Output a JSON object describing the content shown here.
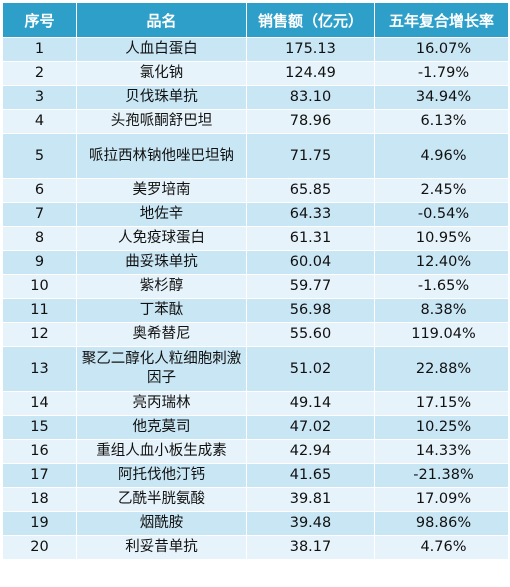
{
  "header": {
    "col_rank": "序号",
    "col_name": "品名",
    "col_sales": "销售额（亿元）",
    "col_growth": "五年复合增长率"
  },
  "rows": [
    {
      "rank": "1",
      "name": "人血白蛋白",
      "sales": "175.13",
      "growth": "16.07%"
    },
    {
      "rank": "2",
      "name": "氯化钠",
      "sales": "124.49",
      "growth": "-1.79%"
    },
    {
      "rank": "3",
      "name": "贝伐珠单抗",
      "sales": "83.10",
      "growth": "34.94%"
    },
    {
      "rank": "4",
      "name": "头孢哌酮舒巴坦",
      "sales": "78.96",
      "growth": "6.13%"
    },
    {
      "rank": "5",
      "name": "哌拉西林钠他唑巴坦钠",
      "sales": "71.75",
      "growth": "4.96%"
    },
    {
      "rank": "6",
      "name": "美罗培南",
      "sales": "65.85",
      "growth": "2.45%"
    },
    {
      "rank": "7",
      "name": "地佐辛",
      "sales": "64.33",
      "growth": "-0.54%"
    },
    {
      "rank": "8",
      "name": "人免疫球蛋白",
      "sales": "61.31",
      "growth": "10.95%"
    },
    {
      "rank": "9",
      "name": "曲妥珠单抗",
      "sales": "60.04",
      "growth": "12.40%"
    },
    {
      "rank": "10",
      "name": "紫杉醇",
      "sales": "59.77",
      "growth": "-1.65%"
    },
    {
      "rank": "11",
      "name": "丁苯酞",
      "sales": "56.98",
      "growth": "8.38%"
    },
    {
      "rank": "12",
      "name": "奥希替尼",
      "sales": "55.60",
      "growth": "119.04%"
    },
    {
      "rank": "13",
      "name": "聚乙二醇化人粒细胞刺激因子",
      "sales": "51.02",
      "growth": "22.88%"
    },
    {
      "rank": "14",
      "name": "亮丙瑞林",
      "sales": "49.14",
      "growth": "17.15%"
    },
    {
      "rank": "15",
      "name": "他克莫司",
      "sales": "47.02",
      "growth": "10.25%"
    },
    {
      "rank": "16",
      "name": "重组人血小板生成素",
      "sales": "42.94",
      "growth": "14.33%"
    },
    {
      "rank": "17",
      "name": "阿托伐他汀钙",
      "sales": "41.65",
      "growth": "-21.38%"
    },
    {
      "rank": "18",
      "name": "乙酰半胱氨酸",
      "sales": "39.81",
      "growth": "17.09%"
    },
    {
      "rank": "19",
      "name": "烟酰胺",
      "sales": "39.48",
      "growth": "98.86%"
    },
    {
      "rank": "20",
      "name": "利妥昔单抗",
      "sales": "38.17",
      "growth": "4.76%"
    }
  ],
  "colors": {
    "header_bg": "#2e9fc9",
    "row_dark": "#c9e6f4",
    "row_light": "#e6f3fa"
  }
}
